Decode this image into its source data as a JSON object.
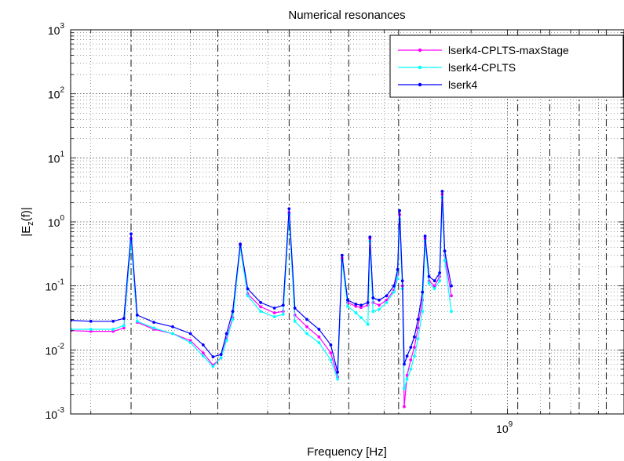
{
  "chart_data": {
    "type": "line",
    "title": "Numerical resonances",
    "xlabel": "Frequency [Hz]",
    "ylabel_main": "|E",
    "ylabel_sub": "z",
    "ylabel_tail": "(f)|",
    "x_scale": "log",
    "y_scale": "log",
    "xlim_hz": [
      283000000,
      1400000000
    ],
    "ylim": [
      0.001,
      1000
    ],
    "x_tick_labels": [
      {
        "value": 1000000000,
        "base": "10",
        "exp": "9"
      }
    ],
    "y_tick_labels": [
      {
        "value": 0.001,
        "base": "10",
        "exp": "-3"
      },
      {
        "value": 0.01,
        "base": "10",
        "exp": "-2"
      },
      {
        "value": 0.1,
        "base": "10",
        "exp": "-1"
      },
      {
        "value": 1,
        "base": "10",
        "exp": "0"
      },
      {
        "value": 10,
        "base": "10",
        "exp": "1"
      },
      {
        "value": 100,
        "base": "10",
        "exp": "2"
      },
      {
        "value": 1000,
        "base": "10",
        "exp": "3"
      }
    ],
    "grid": true,
    "legend_position": "top-right",
    "resonance_markers_hz": [
      337000000,
      433000000,
      532000000,
      632000000,
      730000000,
      1030000000,
      1130000000,
      1230000000,
      1330000000
    ],
    "series": [
      {
        "name": "lserk4-CPLTS-maxStage",
        "color": "#ff00ff",
        "points": [
          [
            283000000,
            0.02
          ],
          [
            300000000,
            0.0195
          ],
          [
            320000000,
            0.0195
          ],
          [
            330000000,
            0.022
          ],
          [
            337000000,
            0.55
          ],
          [
            343000000,
            0.027
          ],
          [
            360000000,
            0.021
          ],
          [
            380000000,
            0.018
          ],
          [
            400000000,
            0.014
          ],
          [
            415000000,
            0.009
          ],
          [
            427000000,
            0.0058
          ],
          [
            437000000,
            0.0075
          ],
          [
            444000000,
            0.015
          ],
          [
            452000000,
            0.032
          ],
          [
            462000000,
            0.43
          ],
          [
            472000000,
            0.075
          ],
          [
            490000000,
            0.047
          ],
          [
            510000000,
            0.038
          ],
          [
            523000000,
            0.04
          ],
          [
            532000000,
            1.4
          ],
          [
            541000000,
            0.035
          ],
          [
            560000000,
            0.023
          ],
          [
            580000000,
            0.016
          ],
          [
            600000000,
            0.009
          ],
          [
            612000000,
            0.0038
          ],
          [
            620000000,
            0.27
          ],
          [
            630000000,
            0.055
          ],
          [
            645000000,
            0.048
          ],
          [
            655000000,
            0.046
          ],
          [
            668000000,
            0.05
          ],
          [
            672000000,
            0.55
          ],
          [
            678000000,
            0.055
          ],
          [
            690000000,
            0.05
          ],
          [
            705000000,
            0.06
          ],
          [
            720000000,
            0.085
          ],
          [
            728000000,
            0.15
          ],
          [
            732000000,
            1.3
          ],
          [
            738000000,
            0.1
          ],
          [
            742000000,
            0.0013
          ],
          [
            748000000,
            0.004
          ],
          [
            756000000,
            0.007
          ],
          [
            764000000,
            0.011
          ],
          [
            772000000,
            0.022
          ],
          [
            782000000,
            0.06
          ],
          [
            788000000,
            0.55
          ],
          [
            797000000,
            0.12
          ],
          [
            810000000,
            0.1
          ],
          [
            822000000,
            0.14
          ],
          [
            828000000,
            2.7
          ],
          [
            834000000,
            0.3
          ],
          [
            850000000,
            0.07
          ]
        ]
      },
      {
        "name": "lserk4-CPLTS",
        "color": "#00ffff",
        "points": [
          [
            283000000,
            0.021
          ],
          [
            300000000,
            0.021
          ],
          [
            320000000,
            0.021
          ],
          [
            330000000,
            0.024
          ],
          [
            337000000,
            0.5
          ],
          [
            343000000,
            0.028
          ],
          [
            360000000,
            0.022
          ],
          [
            380000000,
            0.018
          ],
          [
            400000000,
            0.013
          ],
          [
            415000000,
            0.008
          ],
          [
            427000000,
            0.0055
          ],
          [
            437000000,
            0.0075
          ],
          [
            444000000,
            0.014
          ],
          [
            452000000,
            0.03
          ],
          [
            462000000,
            0.4
          ],
          [
            472000000,
            0.07
          ],
          [
            490000000,
            0.04
          ],
          [
            510000000,
            0.033
          ],
          [
            523000000,
            0.036
          ],
          [
            532000000,
            1.3
          ],
          [
            541000000,
            0.028
          ],
          [
            560000000,
            0.018
          ],
          [
            580000000,
            0.013
          ],
          [
            600000000,
            0.007
          ],
          [
            612000000,
            0.0035
          ],
          [
            620000000,
            0.25
          ],
          [
            630000000,
            0.048
          ],
          [
            645000000,
            0.038
          ],
          [
            655000000,
            0.032
          ],
          [
            668000000,
            0.025
          ],
          [
            672000000,
            0.5
          ],
          [
            678000000,
            0.04
          ],
          [
            690000000,
            0.043
          ],
          [
            705000000,
            0.055
          ],
          [
            720000000,
            0.08
          ],
          [
            728000000,
            0.13
          ],
          [
            732000000,
            1.1
          ],
          [
            738000000,
            0.09
          ],
          [
            742000000,
            0.0025
          ],
          [
            748000000,
            0.0035
          ],
          [
            756000000,
            0.005
          ],
          [
            764000000,
            0.008
          ],
          [
            772000000,
            0.015
          ],
          [
            782000000,
            0.04
          ],
          [
            788000000,
            0.5
          ],
          [
            797000000,
            0.11
          ],
          [
            810000000,
            0.09
          ],
          [
            822000000,
            0.12
          ],
          [
            828000000,
            2.4
          ],
          [
            834000000,
            0.25
          ],
          [
            850000000,
            0.04
          ]
        ]
      },
      {
        "name": "lserk4",
        "color": "#0000ff",
        "points": [
          [
            283000000,
            0.029
          ],
          [
            300000000,
            0.028
          ],
          [
            320000000,
            0.028
          ],
          [
            330000000,
            0.031
          ],
          [
            337000000,
            0.65
          ],
          [
            343000000,
            0.035
          ],
          [
            360000000,
            0.027
          ],
          [
            380000000,
            0.023
          ],
          [
            400000000,
            0.018
          ],
          [
            415000000,
            0.012
          ],
          [
            427000000,
            0.0078
          ],
          [
            437000000,
            0.0085
          ],
          [
            444000000,
            0.018
          ],
          [
            452000000,
            0.04
          ],
          [
            462000000,
            0.45
          ],
          [
            472000000,
            0.09
          ],
          [
            490000000,
            0.055
          ],
          [
            510000000,
            0.045
          ],
          [
            523000000,
            0.05
          ],
          [
            532000000,
            1.6
          ],
          [
            541000000,
            0.045
          ],
          [
            560000000,
            0.03
          ],
          [
            580000000,
            0.021
          ],
          [
            600000000,
            0.012
          ],
          [
            612000000,
            0.0045
          ],
          [
            620000000,
            0.3
          ],
          [
            630000000,
            0.06
          ],
          [
            645000000,
            0.052
          ],
          [
            655000000,
            0.05
          ],
          [
            668000000,
            0.055
          ],
          [
            672000000,
            0.58
          ],
          [
            678000000,
            0.065
          ],
          [
            690000000,
            0.06
          ],
          [
            705000000,
            0.07
          ],
          [
            720000000,
            0.1
          ],
          [
            728000000,
            0.18
          ],
          [
            732000000,
            1.5
          ],
          [
            738000000,
            0.12
          ],
          [
            742000000,
            0.006
          ],
          [
            748000000,
            0.008
          ],
          [
            756000000,
            0.011
          ],
          [
            764000000,
            0.016
          ],
          [
            772000000,
            0.03
          ],
          [
            782000000,
            0.08
          ],
          [
            788000000,
            0.6
          ],
          [
            797000000,
            0.14
          ],
          [
            810000000,
            0.12
          ],
          [
            822000000,
            0.16
          ],
          [
            828000000,
            3.0
          ],
          [
            834000000,
            0.35
          ],
          [
            850000000,
            0.1
          ]
        ]
      }
    ]
  }
}
